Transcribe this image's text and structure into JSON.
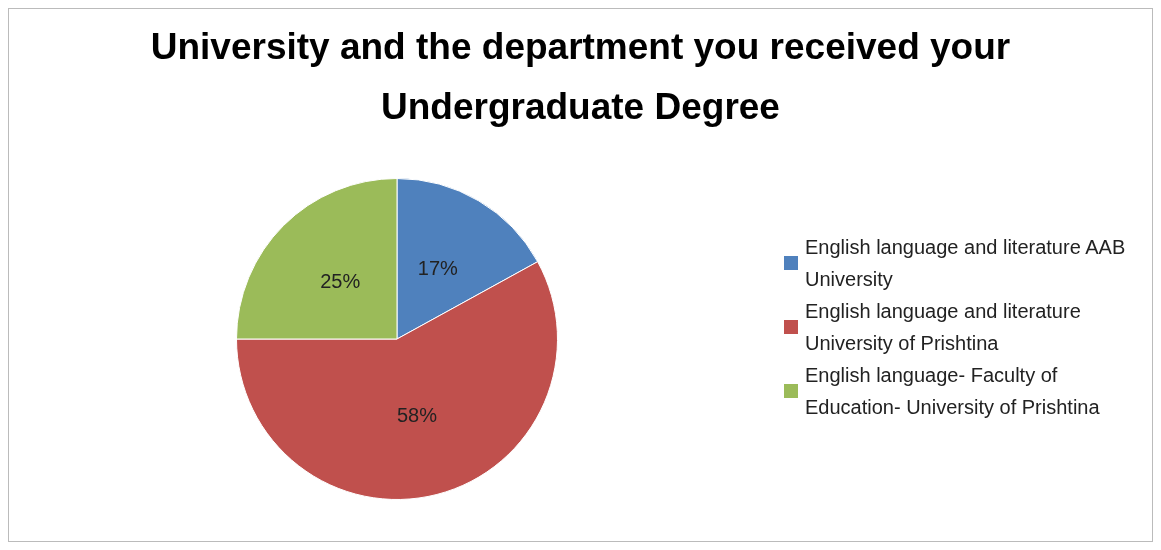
{
  "chart_data": {
    "type": "pie",
    "title": "University and the department you received your Undergraduate Degree",
    "categories": [
      "English language and literature AAB University",
      "English language and literature University of Prishtina",
      "English language- Faculty of Education- University of Prishtina"
    ],
    "values": [
      17,
      58,
      25
    ],
    "colors": [
      "#4f81bd",
      "#c0504d",
      "#9bbb59"
    ],
    "value_labels": [
      "17%",
      "58%",
      "25%"
    ],
    "legend": "right"
  }
}
